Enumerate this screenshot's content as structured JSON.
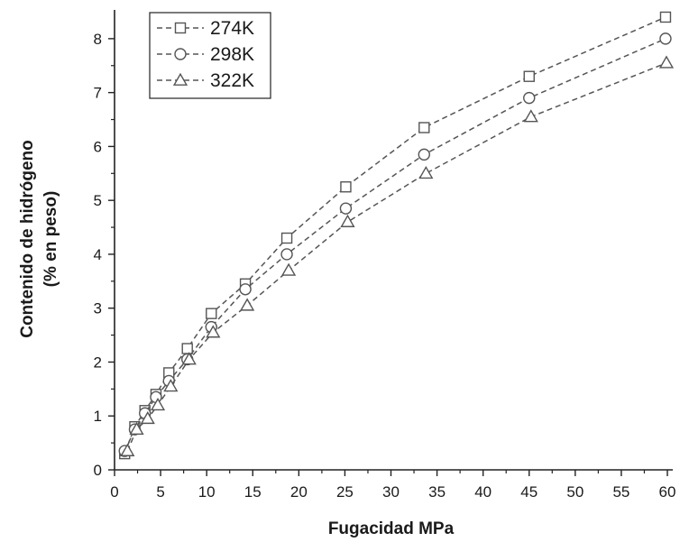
{
  "chart_data": {
    "type": "scatter",
    "xlabel": "Fugacidad MPa",
    "ylabel_lines": [
      "Contenido de hidrógeno",
      "(% en peso)"
    ],
    "xlim": [
      0,
      60
    ],
    "ylim": [
      0,
      8.5
    ],
    "x_ticks": [
      0,
      5,
      10,
      15,
      20,
      25,
      30,
      35,
      40,
      45,
      50,
      55,
      60
    ],
    "y_ticks": [
      0,
      1,
      2,
      3,
      4,
      5,
      6,
      7,
      8
    ],
    "legend_position": "top-left",
    "grid": false,
    "line_style": "dashed",
    "colors": {
      "series": "#555555",
      "axis": "#222222",
      "text": "#1a1a1a"
    },
    "series": [
      {
        "name": "274K",
        "marker": "square",
        "x": [
          1.1,
          2.2,
          3.3,
          4.5,
          5.9,
          7.9,
          10.5,
          14.2,
          18.7,
          25.1,
          33.6,
          45.0,
          59.8
        ],
        "y": [
          0.3,
          0.8,
          1.1,
          1.4,
          1.8,
          2.25,
          2.9,
          3.45,
          4.3,
          5.25,
          6.35,
          7.3,
          8.4
        ]
      },
      {
        "name": "298K",
        "marker": "circle",
        "x": [
          1.1,
          2.2,
          3.3,
          4.5,
          5.9,
          7.9,
          10.5,
          14.2,
          18.7,
          25.1,
          33.6,
          45.0,
          59.8
        ],
        "y": [
          0.35,
          0.75,
          1.05,
          1.35,
          1.65,
          2.05,
          2.65,
          3.35,
          4.0,
          4.85,
          5.85,
          6.9,
          8.0
        ]
      },
      {
        "name": "322K",
        "marker": "triangle",
        "x": [
          1.4,
          2.4,
          3.6,
          4.7,
          6.1,
          8.1,
          10.7,
          14.4,
          18.9,
          25.3,
          33.8,
          45.2,
          59.9
        ],
        "y": [
          0.35,
          0.75,
          0.95,
          1.2,
          1.55,
          2.05,
          2.55,
          3.05,
          3.7,
          4.6,
          5.5,
          6.55,
          7.55
        ]
      }
    ]
  }
}
